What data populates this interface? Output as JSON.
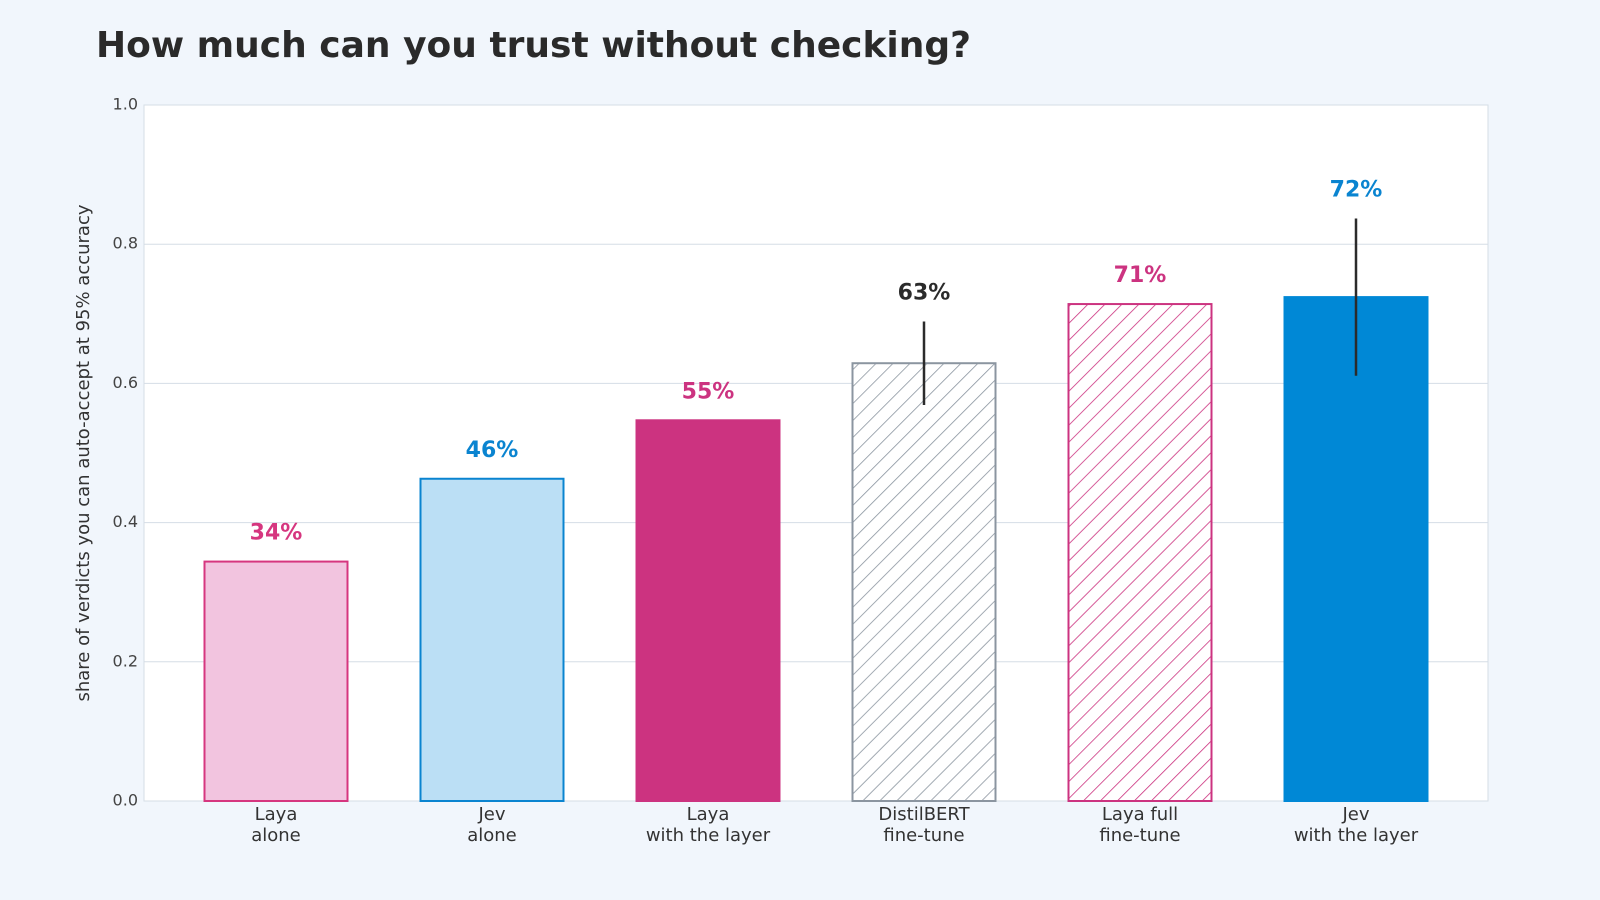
{
  "chart_data": {
    "type": "bar",
    "title": "How much can you trust without checking?",
    "y_label": "share of verdicts you can auto-accept at 95% accuracy",
    "categories": [
      [
        "Laya",
        "alone"
      ],
      [
        "Jev",
        "alone"
      ],
      [
        "Laya",
        "with the layer"
      ],
      [
        "DistilBERT",
        "fine-tune"
      ],
      [
        "Laya full",
        "fine-tune"
      ],
      [
        "Jev",
        "with the layer"
      ]
    ],
    "values": [
      0.344,
      0.463,
      0.547,
      0.629,
      0.714,
      0.724
    ],
    "value_labels": [
      "34%",
      "46%",
      "55%",
      "63%",
      "71%",
      "72%"
    ],
    "errors": [
      null,
      null,
      null,
      0.06,
      null,
      0.113
    ],
    "fill_colors": [
      "#f2c4df",
      "#bbdff5",
      "#cc3380",
      "#ffffff",
      "#ffffff",
      "#0088d6"
    ],
    "edge_colors": [
      "#d6367f",
      "#0a84d0",
      "#cc3380",
      "#8b95a0",
      "#cc3380",
      "#0088d6"
    ],
    "hatch": [
      false,
      false,
      false,
      true,
      true,
      false
    ],
    "label_colors": [
      "#d6367f",
      "#0a84d0",
      "#cc3380",
      "#2b2b2b",
      "#cc3380",
      "#0a84d0"
    ],
    "ylim": [
      0,
      1
    ],
    "yticks": [
      {
        "value": 0,
        "label": "0.0"
      },
      0.2,
      0.4,
      0.6,
      0.8,
      {
        "value": 1,
        "label": "1.0"
      }
    ],
    "grid": true
  }
}
